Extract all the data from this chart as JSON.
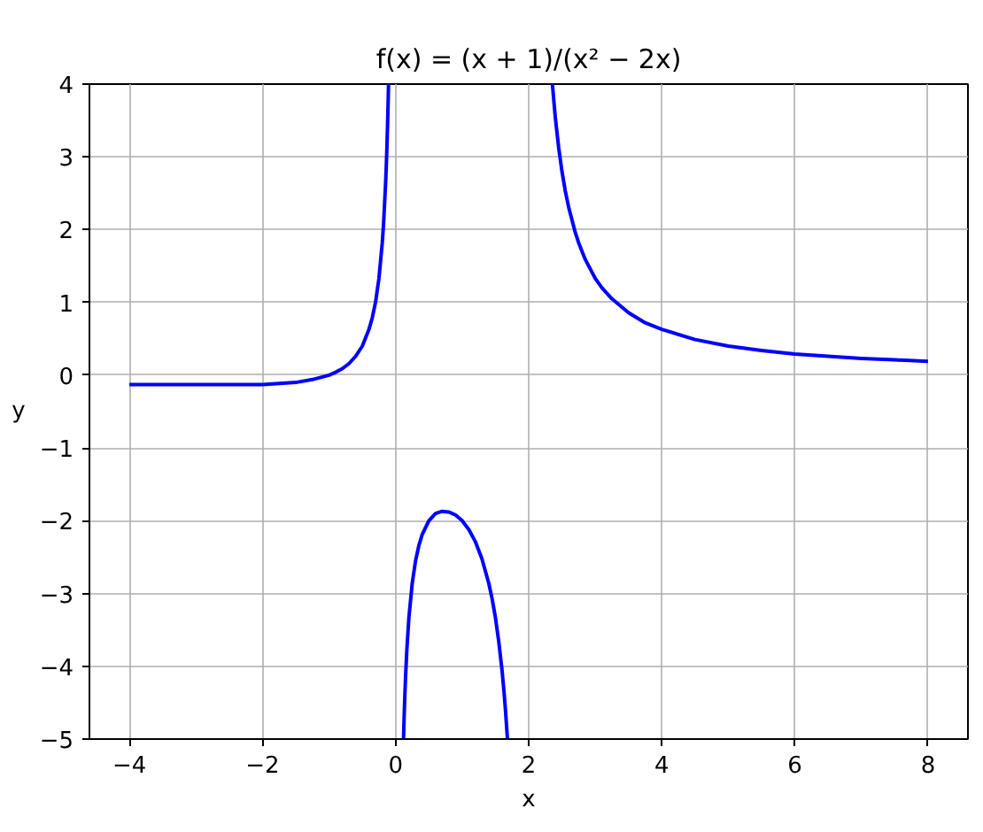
{
  "chart_data": {
    "type": "line",
    "title": "f(x) = (x + 1)/(x² − 2x)",
    "xlabel": "x",
    "ylabel": "y",
    "series": [
      {
        "color": "#0000ff",
        "x": [
          -4,
          -3.5,
          -3,
          -2.5,
          -2,
          -1.5,
          -1.25,
          -1,
          -0.9,
          -0.8,
          -0.7,
          -0.6,
          -0.5,
          -0.4,
          -0.35,
          -0.3,
          -0.25,
          -0.2,
          -0.18,
          -0.15,
          -0.14,
          -0.13,
          -0.12,
          -0.11,
          -0.106
        ],
        "values": [
          -0.13,
          -0.13,
          -0.13,
          -0.13,
          -0.13,
          -0.1,
          -0.06,
          0,
          0.04,
          0.09,
          0.16,
          0.26,
          0.4,
          0.63,
          0.79,
          1.01,
          1.33,
          1.82,
          2.09,
          2.64,
          2.87,
          3.14,
          3.46,
          3.83,
          4
        ]
      },
      {
        "color": "#0000ff",
        "x": [
          0.119,
          0.13,
          0.14,
          0.15,
          0.17,
          0.2,
          0.25,
          0.3,
          0.35,
          0.4,
          0.5,
          0.6,
          0.7,
          0.8,
          0.9,
          1.0,
          1.1,
          1.2,
          1.3,
          1.4,
          1.45,
          1.5,
          1.55,
          1.6,
          1.63,
          1.65,
          1.681
        ],
        "values": [
          -5,
          -4.65,
          -4.38,
          -4.14,
          -3.76,
          -3.33,
          -2.86,
          -2.55,
          -2.34,
          -2.19,
          -2.0,
          -1.9,
          -1.87,
          -1.88,
          -1.92,
          -2.0,
          -2.12,
          -2.29,
          -2.53,
          -2.86,
          -3.07,
          -3.33,
          -3.66,
          -4.06,
          -4.36,
          -4.59,
          -5
        ]
      },
      {
        "color": "#0000ff",
        "x": [
          2.356,
          2.4,
          2.45,
          2.5,
          2.55,
          2.6,
          2.7,
          2.75,
          2.85,
          3,
          3.1,
          3.25,
          3.5,
          3.75,
          4,
          4.5,
          5,
          5.5,
          6,
          6.5,
          7,
          7.5,
          8
        ],
        "values": [
          4,
          3.54,
          3.13,
          2.8,
          2.53,
          2.31,
          1.96,
          1.82,
          1.59,
          1.33,
          1.2,
          1.05,
          0.86,
          0.72,
          0.63,
          0.49,
          0.4,
          0.34,
          0.29,
          0.26,
          0.23,
          0.21,
          0.19
        ]
      }
    ],
    "xlim": [
      -4.6,
      8.6
    ],
    "ylim": [
      -5,
      4
    ],
    "xticks": [
      -4,
      -2,
      0,
      2,
      4,
      6,
      8
    ],
    "yticks": [
      -5,
      -4,
      -3,
      -2,
      -1,
      0,
      1,
      2,
      3,
      4
    ],
    "grid": true,
    "line_style": "solid"
  }
}
